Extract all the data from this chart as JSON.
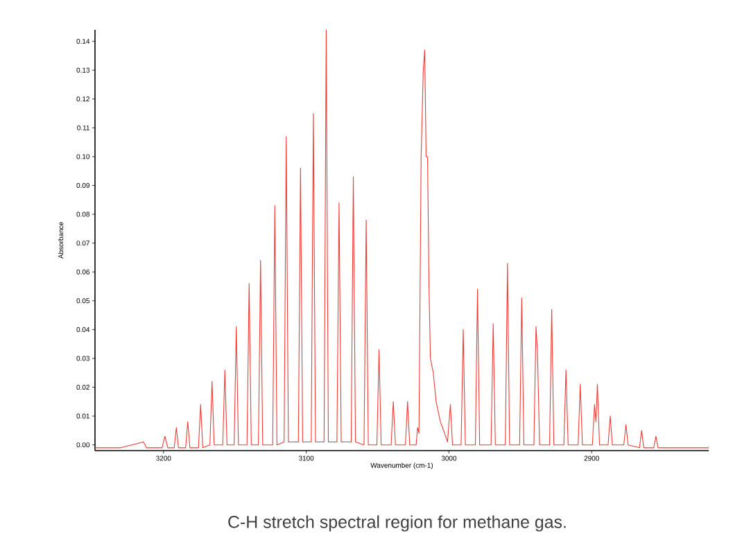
{
  "chart_data": {
    "type": "line",
    "xlabel": "Wavenumber   (cm-1)",
    "ylabel": "Absorbance",
    "annotations": [
      "C-H stretch spectral region for methane gas."
    ],
    "xlim": [
      3248,
      2818
    ],
    "ylim": [
      -0.002,
      0.144
    ],
    "xticks": [
      3200,
      3100,
      3000,
      2900
    ],
    "yticks": [
      {
        "value": 0,
        "label": "0.00"
      },
      {
        "value": 0.01,
        "label": "0.01"
      },
      {
        "value": 0.02,
        "label": "0.02"
      },
      {
        "value": 0.03,
        "label": "0.03"
      },
      {
        "value": 0.04,
        "label": "0.04"
      },
      {
        "value": 0.05,
        "label": "0.05"
      },
      {
        "value": 0.06,
        "label": "0.06"
      },
      {
        "value": 0.07,
        "label": "0.07"
      },
      {
        "value": 0.08,
        "label": "0.08"
      },
      {
        "value": 0.09,
        "label": "0.09"
      },
      {
        "value": 0.1,
        "label": "0.10"
      },
      {
        "value": 0.11,
        "label": "0.11"
      },
      {
        "value": 0.12,
        "label": "0.12"
      },
      {
        "value": 0.13,
        "label": "0.13"
      },
      {
        "value": 0.14,
        "label": "0.14"
      }
    ],
    "grid": false,
    "marker": "none",
    "line_style": "solid",
    "series": [
      {
        "color": "#ee3b35",
        "x": [
          3248,
          3230,
          3214,
          3212,
          3201,
          3199,
          3197,
          3192.5,
          3191,
          3189.5,
          3184.5,
          3183,
          3181.5,
          3175.5,
          3174,
          3172.5,
          3167.5,
          3166,
          3164.5,
          3158.5,
          3157,
          3155.5,
          3150.5,
          3149,
          3147.5,
          3141.5,
          3140,
          3138.5,
          3133.5,
          3132,
          3130.5,
          3123.5,
          3122,
          3120.5,
          3115.5,
          3114,
          3112.5,
          3105.5,
          3104,
          3102.5,
          3096.5,
          3095,
          3093.5,
          3087.5,
          3086,
          3084.5,
          3078.5,
          3077,
          3075.5,
          3068.5,
          3067,
          3065.5,
          3059.5,
          3058,
          3056.5,
          3050.5,
          3049,
          3047.5,
          3040.5,
          3039,
          3037.5,
          3030.5,
          3029,
          3027.5,
          3023,
          3022,
          3021,
          3019.5,
          3018,
          3017,
          3016,
          3015,
          3014,
          3013,
          3011,
          3009,
          3006,
          3003,
          3001,
          2999,
          2997.5,
          2991.5,
          2990,
          2988.5,
          2981.5,
          2980,
          2978.5,
          2970.5,
          2969,
          2967.5,
          2960.5,
          2959,
          2957.5,
          2950.5,
          2949,
          2947.5,
          2940.5,
          2939,
          2938,
          2936.5,
          2929.5,
          2928,
          2926.5,
          2919.5,
          2918,
          2916.5,
          2909.5,
          2908,
          2906.5,
          2899.5,
          2898,
          2897,
          2896,
          2894.5,
          2888.5,
          2887,
          2885.5,
          2877.5,
          2876,
          2874.5,
          2866.5,
          2865,
          2863.5,
          2856.5,
          2855,
          2853.5,
          2818
        ],
        "values": [
          -0.001,
          -0.001,
          0.001,
          -0.001,
          -0.001,
          0.003,
          -0.001,
          -0.001,
          0.006,
          -0.001,
          -0.001,
          0.008,
          -0.001,
          -0.001,
          0.014,
          -0.001,
          0,
          0.022,
          0,
          0,
          0.026,
          0,
          0,
          0.041,
          0,
          0,
          0.056,
          0,
          0,
          0.064,
          0,
          0,
          0.083,
          0,
          0.001,
          0.107,
          0.001,
          0.001,
          0.096,
          0.001,
          0.001,
          0.115,
          0.001,
          0.001,
          0.144,
          0.001,
          0.001,
          0.084,
          0.001,
          0.001,
          0.093,
          0.001,
          0,
          0.078,
          0,
          0,
          0.033,
          0,
          0,
          0.015,
          0,
          0,
          0.015,
          0,
          0,
          0.006,
          0.004,
          0.1,
          0.13,
          0.137,
          0.1,
          0.1,
          0.055,
          0.03,
          0.025,
          0.015,
          0.008,
          0.004,
          0.001,
          0.014,
          0,
          0,
          0.04,
          0,
          0,
          0.054,
          0,
          0,
          0.042,
          0,
          0,
          0.063,
          0,
          0,
          0.051,
          0,
          0,
          0.041,
          0.033,
          0,
          0,
          0.047,
          0,
          0,
          0.026,
          0,
          0,
          0.021,
          0,
          0,
          0.014,
          0.008,
          0.021,
          0,
          0,
          0.01,
          0,
          0,
          0.007,
          0,
          -0.001,
          0.005,
          -0.001,
          -0.001,
          0.003,
          -0.001,
          -0.001
        ]
      }
    ]
  }
}
